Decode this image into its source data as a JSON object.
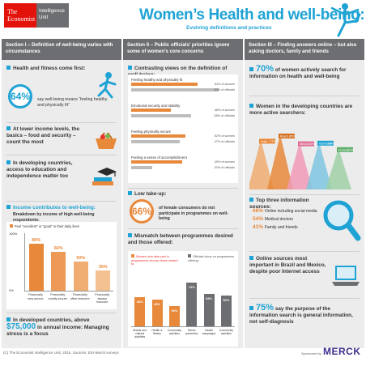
{
  "header": {
    "logo_primary": "The Economist",
    "logo_secondary": "Intelligence Unit",
    "title": "Women’s Health and well-being:",
    "subtitle": "Evolving definitions and practices"
  },
  "section1": {
    "heading": "Section I – Definition of well-being varies with circumstances",
    "block1_title": "Health and fitness come first:",
    "block1_stat": "64%",
    "block1_text": "say well-being means “feeling healthy and physically fit”",
    "block2_title": "At lower income levels, the basics – food and security – count the most",
    "block3_title": "In developing countries, access to education and independence matter too",
    "block4_title": "Income contributes to well-being:",
    "block4_sub": "Breakdown by income of high well-being respondents:",
    "chart_legend": "Feel “excellent” or “good” in their daily lives",
    "chart_axis_top": "100%",
    "chart_axis_bottom": "0%",
    "block5_prefix": "In developed countries, above ",
    "block5_amount": "$75,000",
    "block5_suffix": " in annual income: Managing stress is a focus"
  },
  "section2": {
    "heading": "Section II – Public officials’ priorities ignore some of women’s core concerns",
    "block1_title": "Contrasting views on the definition of well-being:",
    "block2_title": "Low take-up:",
    "block2_stat": "66%",
    "block2_text": "of female consumers do not participate in programmes on well-being",
    "block3_title": "Mismatch between programmes desired and those offered:",
    "legend_women": "Women who take part in programmes choose these related to:",
    "legend_officials": "Officials focus on programmes offering:"
  },
  "section3": {
    "heading": "Section III – Finding answers online – but also asking doctors, family and friends",
    "block1_stat": "70%",
    "block1_text": "of women actively search for information on health and well-being",
    "block2_title": "Women in the developing countries are more active searchers:",
    "block3_title": "Top three information sources:",
    "sources": [
      {
        "pct": "66%",
        "label": "Online including social media"
      },
      {
        "pct": "54%",
        "label": "Medical doctors"
      },
      {
        "pct": "41%",
        "label": "Family and friends"
      }
    ],
    "block4_title": "Online sources most important in Brazil and Mexico, despite poor Internet access",
    "block5_stat": "75%",
    "block5_text": "say the purpose of the information search is general information, not self-diagnosis"
  },
  "footer": {
    "credit": "(C) The Economist Intelligence Unit, 2015. Sources: EIU-Merck surveys",
    "sponsor_label": "Sponsored by:",
    "sponsor_name": "MERCK"
  },
  "colors": {
    "accent_blue": "#1fa3d4",
    "accent_orange": "#e8883a",
    "header_grey": "#6d6e71",
    "panel_grey": "#ececec",
    "economist_red": "#e3120b"
  },
  "chart_data": [
    {
      "type": "bar",
      "title": "Breakdown by income of high well-being respondents",
      "categories": [
        "Financially very secure",
        "Financially mostly secure",
        "Financially often insecure",
        "Financially always insecure"
      ],
      "values": [
        80,
        66,
        50,
        35
      ],
      "ylim": [
        0,
        100
      ]
    },
    {
      "type": "bar",
      "title": "Contrasting views on the definition of well-being",
      "categories": [
        "Feeling healthy and physically fit",
        "Emotional security and stability",
        "Feeling physically secure",
        "Feeling a sense of accomplishment"
      ],
      "series": [
        {
          "name": "Women",
          "values": [
            64,
            38,
            52,
            49
          ]
        },
        {
          "name": "Officials",
          "values": [
            84,
            58,
            47,
            20
          ]
        }
      ]
    },
    {
      "type": "bar",
      "title": "Mismatch between programmes desired and those offered",
      "categories": [
        "Mobile and cultural activities",
        "Health & fitness",
        "Community activities",
        "Stress prevention",
        "Health campaigns",
        "Community activities"
      ],
      "series": [
        {
          "name": "Women",
          "values": [
            48,
            45,
            34,
            null,
            null,
            null
          ]
        },
        {
          "name": "Officials",
          "values": [
            null,
            null,
            null,
            73,
            54,
            52
          ]
        }
      ]
    },
    {
      "type": "bar",
      "title": "Women in the developing countries are more active searchers",
      "categories": [
        "India",
        "Brazil",
        "Mexico",
        "Germany",
        "France"
      ],
      "values": [
        77,
        85,
        73,
        74,
        64
      ]
    }
  ]
}
